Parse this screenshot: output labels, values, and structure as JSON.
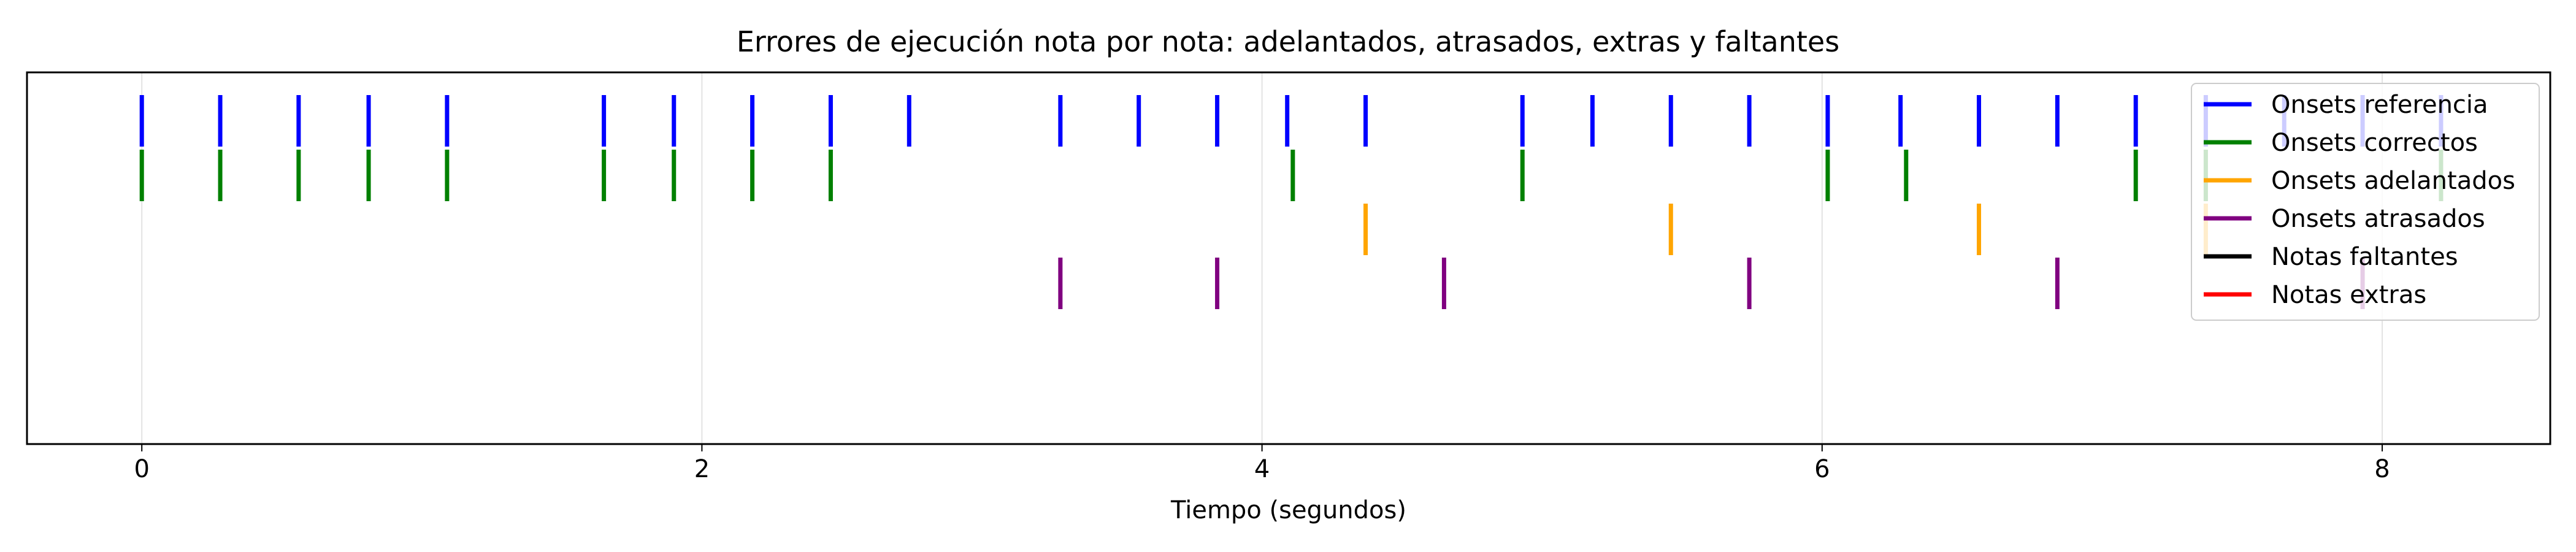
{
  "chart_data": {
    "type": "event_plot",
    "title": "Errores de ejecución nota por nota: adelantados, atrasados, extras y faltantes",
    "xlabel": "Tiempo (segundos)",
    "ylabel": "",
    "xlim": [
      -0.41,
      8.6
    ],
    "x_ticks": [
      0,
      2,
      4,
      6,
      8
    ],
    "grid": "vertical",
    "legend_position": "top-right",
    "series": [
      {
        "name": "Onsets referencia",
        "color": "#0000ff",
        "x": [
          0.0,
          0.28,
          0.56,
          0.81,
          1.09,
          1.65,
          1.9,
          2.18,
          2.46,
          2.74,
          3.28,
          3.56,
          3.84,
          4.09,
          4.37,
          4.93,
          5.18,
          5.46,
          5.74,
          6.02,
          6.28,
          6.56,
          6.84,
          7.12,
          7.37,
          7.65,
          7.93,
          8.21
        ]
      },
      {
        "name": "Onsets correctos",
        "color": "#008000",
        "x": [
          0.0,
          0.28,
          0.56,
          0.81,
          1.09,
          1.65,
          1.9,
          2.18,
          2.46,
          4.11,
          4.93,
          6.02,
          6.3,
          7.12,
          7.37,
          8.21
        ]
      },
      {
        "name": "Onsets adelantados",
        "color": "#ffa500",
        "x": [
          4.37,
          5.46,
          6.56,
          7.37
        ]
      },
      {
        "name": "Onsets atrasados",
        "color": "#800080",
        "x": [
          3.28,
          3.84,
          4.65,
          5.74,
          6.84,
          7.93
        ]
      },
      {
        "name": "Notas faltantes",
        "color": "#000000",
        "x": []
      },
      {
        "name": "Notas extras",
        "color": "#ff0000",
        "x": []
      }
    ]
  }
}
